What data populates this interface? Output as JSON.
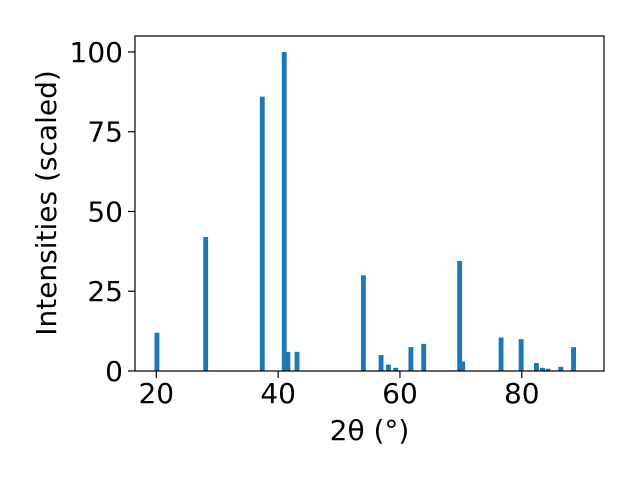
{
  "chart_data": {
    "type": "bar",
    "title": "",
    "xlabel": "2θ (°)",
    "ylabel": "Intensities (scaled)",
    "xlim": [
      16.5,
      93.5
    ],
    "ylim": [
      0,
      105
    ],
    "xticks": [
      20,
      40,
      60,
      80
    ],
    "yticks": [
      0,
      25,
      50,
      75,
      100
    ],
    "grid": false,
    "legend": "none",
    "bar_width": 0.8,
    "bar_color": "#1f77b4",
    "x": [
      20.1,
      28.1,
      37.4,
      41.0,
      41.6,
      43.1,
      54.0,
      56.9,
      58.1,
      59.3,
      61.8,
      63.9,
      69.8,
      70.3,
      76.6,
      79.9,
      82.4,
      83.4,
      84.3,
      86.4,
      88.5
    ],
    "values": [
      12,
      42,
      86,
      100,
      6,
      6,
      30,
      5,
      2,
      1,
      7.5,
      8.5,
      34.5,
      3,
      10.5,
      10,
      2.5,
      1,
      0.7,
      1.3,
      7.5
    ]
  }
}
